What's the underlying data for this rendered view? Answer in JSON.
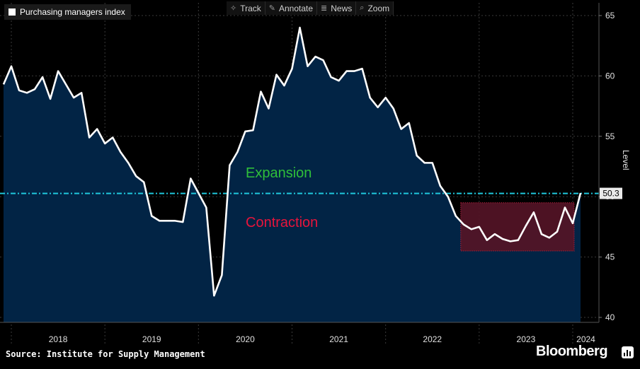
{
  "legend": {
    "label": "Purchasing managers index"
  },
  "toolbar": [
    {
      "icon": "crosshair-icon",
      "glyph": "✧",
      "label": "Track"
    },
    {
      "icon": "pen-icon",
      "glyph": "✎",
      "label": "Annotate"
    },
    {
      "icon": "news-icon",
      "glyph": "≣",
      "label": "News"
    },
    {
      "icon": "zoom-icon",
      "glyph": "⌕",
      "label": "Zoom"
    }
  ],
  "source": "Source: Institute for Supply Management",
  "brand": "Bloomberg",
  "colors": {
    "background": "#000000",
    "area_fill": "#022445",
    "line": "#ffffff",
    "reference_line": "#1fc8dc",
    "expansion": "#2fbf3a",
    "contraction": "#e8143c",
    "highlight_fill": "#3a0812",
    "highlight_border": "#e02040"
  },
  "chart_data": {
    "type": "area",
    "ylabel": "Level",
    "ylim": [
      40,
      65
    ],
    "yticks": [
      40,
      45,
      50,
      55,
      60,
      65
    ],
    "xticks": [
      "2018",
      "2019",
      "2020",
      "2021",
      "2022",
      "2023",
      "2024"
    ],
    "x_range": [
      "2017-12",
      "2024-02"
    ],
    "series": [
      {
        "name": "Purchasing managers index",
        "x": [
          "2017-12",
          "2018-01",
          "2018-02",
          "2018-03",
          "2018-04",
          "2018-05",
          "2018-06",
          "2018-07",
          "2018-08",
          "2018-09",
          "2018-10",
          "2018-11",
          "2018-12",
          "2019-01",
          "2019-02",
          "2019-03",
          "2019-04",
          "2019-05",
          "2019-06",
          "2019-07",
          "2019-08",
          "2019-09",
          "2019-10",
          "2019-11",
          "2019-12",
          "2020-01",
          "2020-02",
          "2020-03",
          "2020-04",
          "2020-05",
          "2020-06",
          "2020-07",
          "2020-08",
          "2020-09",
          "2020-10",
          "2020-11",
          "2020-12",
          "2021-01",
          "2021-02",
          "2021-03",
          "2021-04",
          "2021-05",
          "2021-06",
          "2021-07",
          "2021-08",
          "2021-09",
          "2021-10",
          "2021-11",
          "2021-12",
          "2022-01",
          "2022-02",
          "2022-03",
          "2022-04",
          "2022-05",
          "2022-06",
          "2022-07",
          "2022-08",
          "2022-09",
          "2022-10",
          "2022-11",
          "2022-12",
          "2023-01",
          "2023-02",
          "2023-03",
          "2023-04",
          "2023-05",
          "2023-06",
          "2023-07",
          "2023-08",
          "2023-09",
          "2023-10",
          "2023-11",
          "2023-12",
          "2024-01",
          "2024-02"
        ],
        "values": [
          59.3,
          60.8,
          58.8,
          58.6,
          58.9,
          59.9,
          58.1,
          60.4,
          59.3,
          58.2,
          58.6,
          54.9,
          55.6,
          54.4,
          54.9,
          53.7,
          52.8,
          51.7,
          51.2,
          48.4,
          48.0,
          48.0,
          48.0,
          47.9,
          51.5,
          50.3,
          49.1,
          41.8,
          43.5,
          52.6,
          53.7,
          55.4,
          55.5,
          58.7,
          57.3,
          60.1,
          59.2,
          60.6,
          64.0,
          60.8,
          61.6,
          61.3,
          59.9,
          59.6,
          60.4,
          60.4,
          60.6,
          58.2,
          57.4,
          58.2,
          57.3,
          55.6,
          56.1,
          53.4,
          52.8,
          52.8,
          50.9,
          50.0,
          48.4,
          47.7,
          47.3,
          47.5,
          46.4,
          46.9,
          46.5,
          46.3,
          46.4,
          47.6,
          48.7,
          46.9,
          46.6,
          47.1,
          49.1,
          47.8,
          50.3
        ]
      }
    ],
    "reference_line": {
      "value": 50.3,
      "label": "50.3"
    },
    "annotations": [
      {
        "text": "Expansion",
        "region": "above reference line"
      },
      {
        "text": "Contraction",
        "region": "below reference line"
      }
    ],
    "highlight_range": {
      "x_start": "2022-11",
      "x_end": "2024-01",
      "y_min": 45.5,
      "y_max": 49.5
    }
  }
}
